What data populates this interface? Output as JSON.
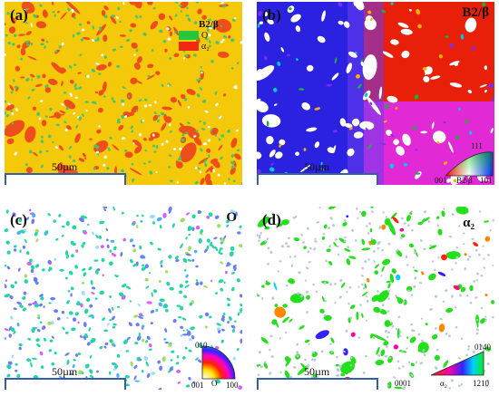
{
  "panels": [
    {
      "id": "a",
      "label": "(a)",
      "scale_bar": "50µm",
      "legend": {
        "header": "B2/β",
        "items": [
          {
            "label": "O",
            "color": "#24c83a"
          },
          {
            "label": "α₂",
            "color": "#ee2a12"
          }
        ]
      },
      "colors": {
        "matrix": "#f4c90a",
        "grain": "#ee4e1a",
        "speck": "#4ac46a"
      }
    },
    {
      "id": "b",
      "label": "(b)",
      "tag": "B2/β",
      "scale_bar": "50µm",
      "ipf": {
        "top": "111",
        "left": "001",
        "mid": "B2/β",
        "right": "101"
      }
    },
    {
      "id": "c",
      "label": "(c)",
      "tag": "O",
      "scale_bar": "50µm",
      "ipf": {
        "top": "010",
        "left": "001",
        "mid": "O",
        "right": "100"
      }
    },
    {
      "id": "d",
      "label": "(d)",
      "tag": "α₂",
      "scale_bar": "50µm",
      "ipf": {
        "top": "0140",
        "left": "0001",
        "mid": "α₂",
        "right": "1210"
      }
    }
  ]
}
